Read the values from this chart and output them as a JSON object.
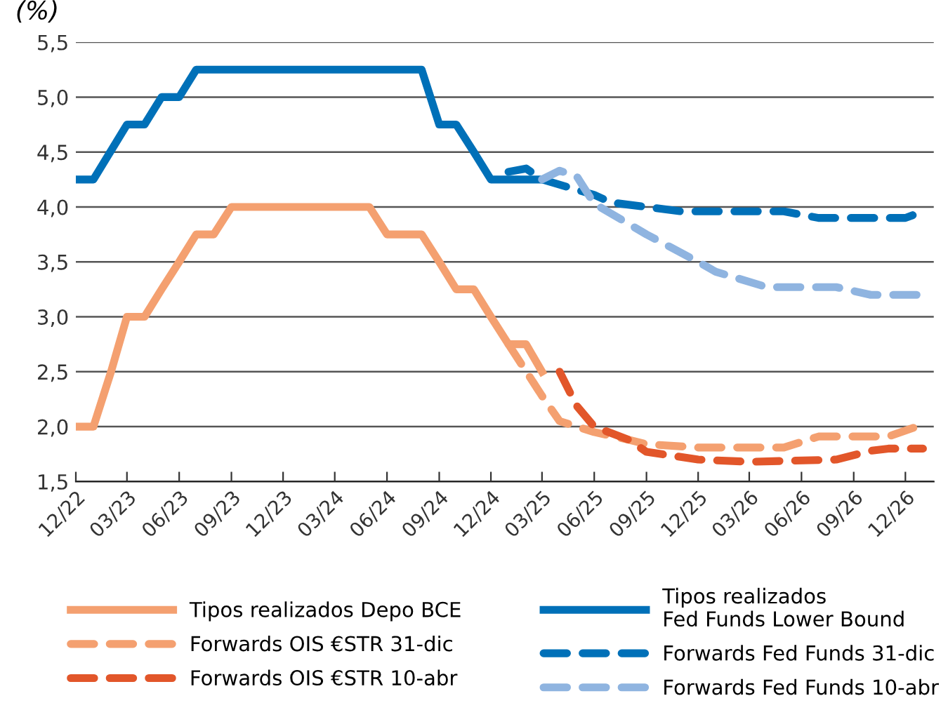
{
  "chart_data": {
    "type": "line",
    "ylabel": "(%)",
    "xlim": [
      "2022-12",
      "2027-01-20"
    ],
    "ylim": [
      1.5,
      5.5
    ],
    "yticks": [
      {
        "value": 1.5,
        "label": "1,5"
      },
      {
        "value": 2.0,
        "label": "2,0"
      },
      {
        "value": 2.5,
        "label": "2,5"
      },
      {
        "value": 3.0,
        "label": "3,0"
      },
      {
        "value": 3.5,
        "label": "3,5"
      },
      {
        "value": 4.0,
        "label": "4,0"
      },
      {
        "value": 4.5,
        "label": "4,5"
      },
      {
        "value": 5.0,
        "label": "5,0"
      },
      {
        "value": 5.5,
        "label": "5,5"
      }
    ],
    "xticks": [
      {
        "value": "2022-12",
        "label": "12/22"
      },
      {
        "value": "2023-03",
        "label": "03/23"
      },
      {
        "value": "2023-06",
        "label": "06/23"
      },
      {
        "value": "2023-09",
        "label": "09/23"
      },
      {
        "value": "2023-12",
        "label": "12/23"
      },
      {
        "value": "2024-03",
        "label": "03/24"
      },
      {
        "value": "2024-06",
        "label": "06/24"
      },
      {
        "value": "2024-09",
        "label": "09/24"
      },
      {
        "value": "2024-12",
        "label": "12/24"
      },
      {
        "value": "2025-03",
        "label": "03/25"
      },
      {
        "value": "2025-06",
        "label": "06/25"
      },
      {
        "value": "2025-09",
        "label": "09/25"
      },
      {
        "value": "2025-12",
        "label": "12/25"
      },
      {
        "value": "2026-03",
        "label": "03/26"
      },
      {
        "value": "2026-06",
        "label": "06/26"
      },
      {
        "value": "2026-09",
        "label": "09/26"
      },
      {
        "value": "2026-12",
        "label": "12/26"
      }
    ],
    "grid": "y",
    "legend": "bottom",
    "marker": "none",
    "series": [
      {
        "name": "Tipos realizados Depo BCE",
        "color": "#f4a070",
        "line_style": "solid",
        "x": [
          "2022-12",
          "2023-01",
          "2023-02",
          "2023-03",
          "2023-04",
          "2023-05",
          "2023-06",
          "2023-07",
          "2023-08",
          "2023-09",
          "2024-05",
          "2024-06",
          "2024-07",
          "2024-08",
          "2024-09",
          "2024-10",
          "2024-11",
          "2024-12",
          "2025-01",
          "2025-02",
          "2025-03"
        ],
        "values": [
          2.0,
          2.0,
          2.5,
          3.0,
          3.0,
          3.25,
          3.5,
          3.75,
          3.75,
          4.0,
          4.0,
          3.75,
          3.75,
          3.75,
          3.5,
          3.25,
          3.25,
          3.0,
          2.75,
          2.75,
          2.5
        ]
      },
      {
        "name": "Forwards OIS €STR 31-dic",
        "color": "#f4a070",
        "line_style": "dashed",
        "x": [
          "2025-01",
          "2025-03",
          "2025-04",
          "2025-06",
          "2025-08",
          "2025-09",
          "2025-12",
          "2026-03",
          "2026-05",
          "2026-07",
          "2026-11",
          "2027-01"
        ],
        "values": [
          2.75,
          2.28,
          2.05,
          1.95,
          1.88,
          1.84,
          1.81,
          1.81,
          1.81,
          1.91,
          1.91,
          2.02
        ]
      },
      {
        "name": "Forwards OIS €STR 10-abr",
        "color": "#e2562a",
        "line_style": "dashed",
        "x": [
          "2025-04",
          "2025-05",
          "2025-06",
          "2025-08",
          "2025-09",
          "2025-12",
          "2026-03",
          "2026-08",
          "2026-10",
          "2026-11",
          "2027-01"
        ],
        "values": [
          2.5,
          2.19,
          2.0,
          1.88,
          1.77,
          1.7,
          1.68,
          1.7,
          1.78,
          1.8,
          1.8
        ]
      },
      {
        "name": "Tipos realizados\nFed Funds Lower Bound",
        "color": "#0070b8",
        "line_style": "solid",
        "x": [
          "2022-12",
          "2023-01",
          "2023-03",
          "2023-04",
          "2023-05",
          "2023-06",
          "2023-07",
          "2024-08",
          "2024-09",
          "2024-10",
          "2024-11",
          "2024-12",
          "2025-03"
        ],
        "values": [
          4.25,
          4.25,
          4.75,
          4.75,
          5.0,
          5.0,
          5.25,
          5.25,
          4.75,
          4.75,
          4.5,
          4.25,
          4.25
        ]
      },
      {
        "name": "Forwards Fed Funds 31-dic",
        "color": "#0070b8",
        "line_style": "dashed",
        "x": [
          "2025-01",
          "2025-02",
          "2025-03",
          "2025-06",
          "2025-07",
          "2025-09",
          "2025-11",
          "2026-05",
          "2026-07",
          "2026-12",
          "2027-01"
        ],
        "values": [
          4.32,
          4.35,
          4.25,
          4.11,
          4.04,
          4.0,
          3.96,
          3.96,
          3.9,
          3.9,
          3.96
        ]
      },
      {
        "name": "Forwards Fed Funds 10-abr",
        "color": "#8fb4e0",
        "line_style": "dashed",
        "x": [
          "2025-03",
          "2025-04",
          "2025-05",
          "2025-06",
          "2025-09",
          "2025-12",
          "2026-01",
          "2026-04",
          "2026-08",
          "2026-10",
          "2027-01"
        ],
        "values": [
          4.25,
          4.33,
          4.28,
          4.03,
          3.75,
          3.5,
          3.41,
          3.27,
          3.27,
          3.2,
          3.2
        ]
      }
    ]
  }
}
